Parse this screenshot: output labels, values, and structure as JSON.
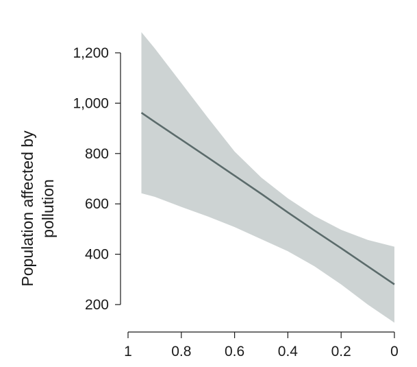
{
  "chart_data": {
    "type": "line",
    "title": "",
    "xlabel": "",
    "ylabel": "Population affected by pollution",
    "ylabel_lines": [
      "Population affected by",
      "pollution"
    ],
    "x_reversed": true,
    "xlim": [
      1.0,
      0.0
    ],
    "ylim": [
      130,
      1300
    ],
    "x_ticks": [
      1,
      0.8,
      0.6,
      0.4,
      0.2,
      0
    ],
    "x_tick_labels": [
      "1",
      "0.8",
      "0.6",
      "0.4",
      "0.2",
      "0"
    ],
    "y_ticks": [
      200,
      400,
      600,
      800,
      1000,
      1200
    ],
    "y_tick_labels": [
      "200",
      "400",
      "600",
      "800",
      "1,000",
      "1,200"
    ],
    "grid": false,
    "legend": "none",
    "colors": {
      "line": "#5b6b6b",
      "band": "#cdd3d3",
      "axis": "#1a1a1a"
    },
    "series": [
      {
        "x": [
          0.95,
          0.9,
          0.8,
          0.7,
          0.6,
          0.5,
          0.4,
          0.3,
          0.2,
          0.1,
          0.0
        ],
        "values": [
          962,
          926,
          855,
          784,
          712,
          640,
          566,
          494,
          424,
          352,
          280
        ]
      }
    ],
    "confidence_band": {
      "x": [
        0.95,
        0.9,
        0.8,
        0.7,
        0.6,
        0.5,
        0.4,
        0.3,
        0.2,
        0.1,
        0.0
      ],
      "upper": [
        1282,
        1218,
        1080,
        942,
        808,
        705,
        622,
        552,
        497,
        457,
        430
      ],
      "lower": [
        642,
        628,
        588,
        550,
        508,
        460,
        412,
        352,
        280,
        200,
        128
      ]
    }
  }
}
